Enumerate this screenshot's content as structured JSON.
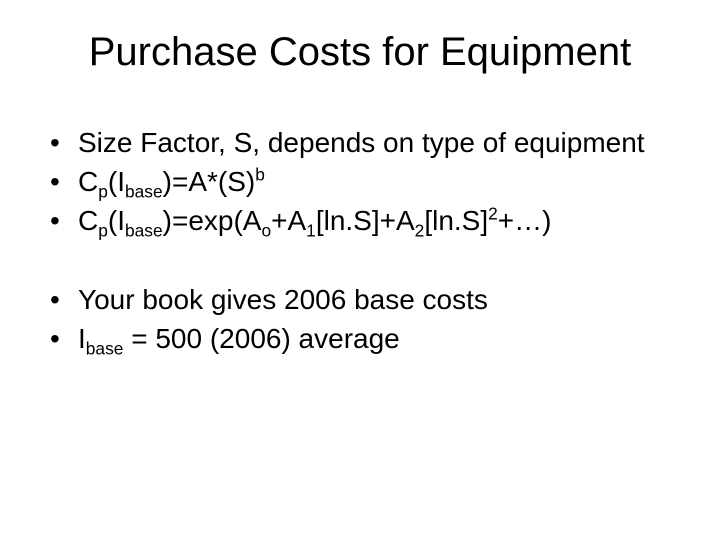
{
  "slide": {
    "title": "Purchase Costs for Equipment",
    "title_fontsize": 40,
    "body_fontsize": 28,
    "text_color": "#000000",
    "background_color": "#ffffff",
    "bullets_group1": [
      {
        "plain": "Size Factor, S, depends on type of equipment",
        "segments": [
          {
            "t": "Size Factor, S, depends on type of equipment"
          }
        ]
      },
      {
        "plain": "Cp(Ibase)=A*(S)^b",
        "segments": [
          {
            "t": "C"
          },
          {
            "t": "p",
            "sub": true
          },
          {
            "t": "(I"
          },
          {
            "t": "base",
            "sub": true
          },
          {
            "t": ")=A*(S)"
          },
          {
            "t": "b",
            "sup": true
          }
        ]
      },
      {
        "plain": "Cp(Ibase)=exp(Ao+A1[ln.S]+A2[ln.S]^2+…)",
        "segments": [
          {
            "t": "C"
          },
          {
            "t": "p",
            "sub": true
          },
          {
            "t": "(I"
          },
          {
            "t": "base",
            "sub": true
          },
          {
            "t": ")=exp(A"
          },
          {
            "t": "o",
            "sub": true
          },
          {
            "t": "+A"
          },
          {
            "t": "1",
            "sub": true
          },
          {
            "t": "[ln.S]+A"
          },
          {
            "t": "2",
            "sub": true
          },
          {
            "t": "[ln.S]"
          },
          {
            "t": "2",
            "sup": true
          },
          {
            "t": "+…)"
          }
        ]
      }
    ],
    "bullets_group2": [
      {
        "plain": "Your book gives 2006 base costs",
        "segments": [
          {
            "t": "Your book gives 2006 base costs"
          }
        ]
      },
      {
        "plain": "Ibase = 500 (2006) average",
        "segments": [
          {
            "t": "I"
          },
          {
            "t": "base",
            "sub": true
          },
          {
            "t": " = 500 (2006) average"
          }
        ]
      }
    ]
  }
}
